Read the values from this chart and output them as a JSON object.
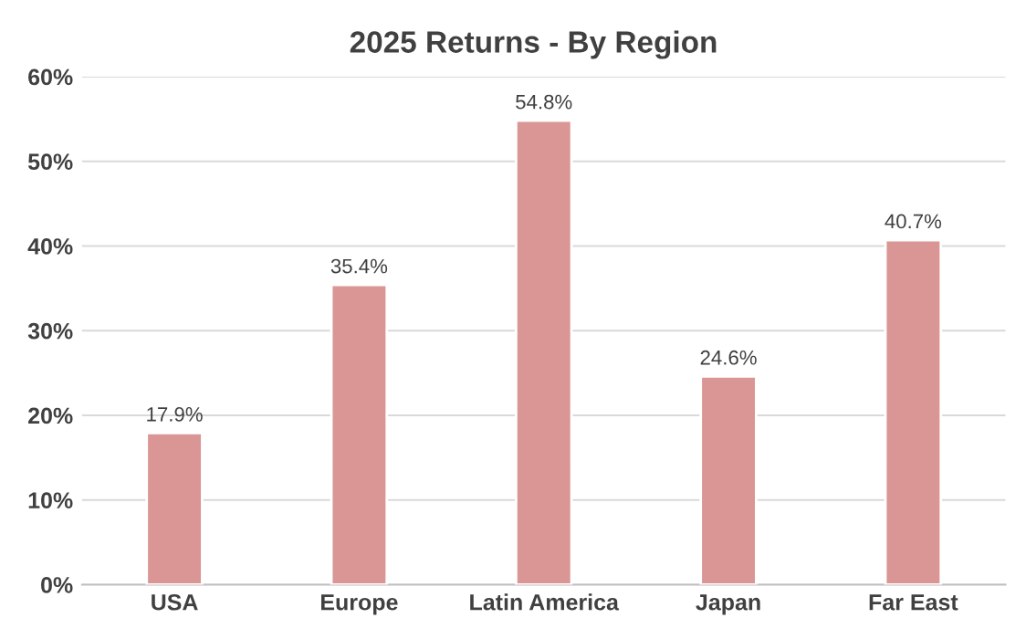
{
  "chart_data": {
    "type": "bar",
    "title": "2025 Returns - By Region",
    "categories": [
      "USA",
      "Europe",
      "Latin America",
      "Japan",
      "Far East"
    ],
    "values": [
      17.9,
      35.4,
      54.8,
      24.6,
      40.7
    ],
    "value_labels": [
      "17.9%",
      "35.4%",
      "54.8%",
      "24.6%",
      "40.7%"
    ],
    "color": "#d99694",
    "ylim": [
      0,
      60
    ],
    "yticks": [
      {
        "value": 0,
        "label": "0%"
      },
      {
        "value": 10,
        "label": "10%"
      },
      {
        "value": 20,
        "label": "20%"
      },
      {
        "value": 30,
        "label": "30%"
      },
      {
        "value": 40,
        "label": "40%"
      },
      {
        "value": 50,
        "label": "50%"
      },
      {
        "value": 60,
        "label": "60%"
      }
    ],
    "grid": "y"
  }
}
